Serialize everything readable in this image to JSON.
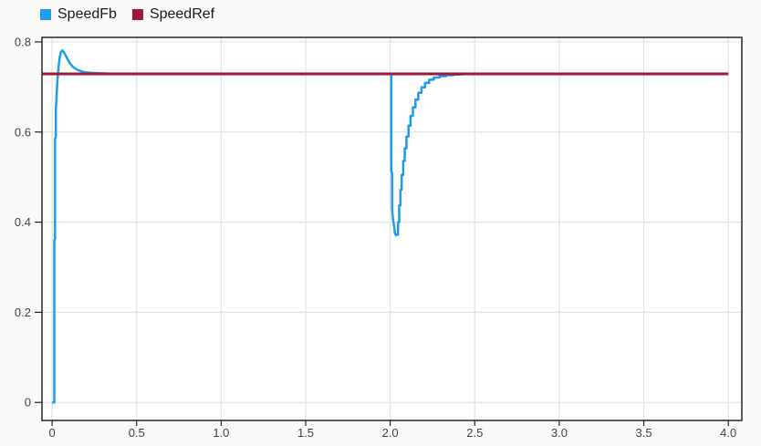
{
  "window": {
    "background": "#fafafa"
  },
  "legend": {
    "items": [
      {
        "id": "speedfb",
        "label": "SpeedFb",
        "color": "#1e9ceb"
      },
      {
        "id": "speedref",
        "label": "SpeedRef",
        "color": "#a21638"
      }
    ]
  },
  "chart_data": {
    "type": "line",
    "title": "",
    "xlabel": "",
    "ylabel": "",
    "xlim": [
      -0.06,
      4.08
    ],
    "ylim": [
      -0.04,
      0.81
    ],
    "grid": true,
    "legend_position": "top-left",
    "plot_background": "#ffffff",
    "grid_color": "#e2e2e2",
    "axis_color": "#262626",
    "tick_label_color": "#424242",
    "xticks": {
      "values": [
        0,
        0.5,
        1,
        1.5,
        2,
        2.5,
        3,
        3.5,
        4
      ],
      "labels": [
        "0",
        "0.5",
        "1.0",
        "1.5",
        "2.0",
        "2.5",
        "3.0",
        "3.5",
        "4.0"
      ]
    },
    "yticks": {
      "values": [
        0,
        0.2,
        0.4,
        0.6,
        0.8
      ],
      "labels": [
        "0",
        "0.2",
        "0.4",
        "0.6",
        "0.8"
      ]
    },
    "series": [
      {
        "name": "SpeedFb",
        "color": "#1e9ceb",
        "line_width": 2.5,
        "points": [
          [
            0.0,
            0.0
          ],
          [
            0.013,
            0.0
          ],
          [
            0.013,
            0.36
          ],
          [
            0.017,
            0.362
          ],
          [
            0.017,
            0.585
          ],
          [
            0.022,
            0.588
          ],
          [
            0.022,
            0.648
          ],
          [
            0.027,
            0.683
          ],
          [
            0.032,
            0.716
          ],
          [
            0.038,
            0.745
          ],
          [
            0.045,
            0.766
          ],
          [
            0.052,
            0.777
          ],
          [
            0.06,
            0.781
          ],
          [
            0.07,
            0.777
          ],
          [
            0.082,
            0.769
          ],
          [
            0.095,
            0.759
          ],
          [
            0.11,
            0.75
          ],
          [
            0.128,
            0.743
          ],
          [
            0.15,
            0.738
          ],
          [
            0.178,
            0.734
          ],
          [
            0.21,
            0.732
          ],
          [
            0.25,
            0.731
          ],
          [
            0.31,
            0.73
          ],
          [
            0.4,
            0.729
          ],
          [
            1.0,
            0.729
          ],
          [
            1.6,
            0.729
          ],
          [
            2.0,
            0.729
          ],
          [
            2.006,
            0.729
          ],
          [
            2.006,
            0.515
          ],
          [
            2.011,
            0.508
          ],
          [
            2.011,
            0.43
          ],
          [
            2.017,
            0.405
          ],
          [
            2.023,
            0.392
          ],
          [
            2.028,
            0.375
          ],
          [
            2.034,
            0.371
          ],
          [
            2.04,
            0.373
          ],
          [
            2.046,
            0.372
          ],
          [
            2.046,
            0.4
          ],
          [
            2.053,
            0.4
          ],
          [
            2.053,
            0.437
          ],
          [
            2.06,
            0.437
          ],
          [
            2.06,
            0.472
          ],
          [
            2.068,
            0.472
          ],
          [
            2.068,
            0.505
          ],
          [
            2.077,
            0.505
          ],
          [
            2.077,
            0.536
          ],
          [
            2.086,
            0.536
          ],
          [
            2.086,
            0.564
          ],
          [
            2.096,
            0.564
          ],
          [
            2.096,
            0.59
          ],
          [
            2.108,
            0.59
          ],
          [
            2.108,
            0.614
          ],
          [
            2.12,
            0.614
          ],
          [
            2.12,
            0.636
          ],
          [
            2.134,
            0.636
          ],
          [
            2.134,
            0.655
          ],
          [
            2.149,
            0.655
          ],
          [
            2.149,
            0.672
          ],
          [
            2.166,
            0.672
          ],
          [
            2.166,
            0.687
          ],
          [
            2.185,
            0.687
          ],
          [
            2.185,
            0.699
          ],
          [
            2.206,
            0.699
          ],
          [
            2.206,
            0.709
          ],
          [
            2.23,
            0.709
          ],
          [
            2.23,
            0.716
          ],
          [
            2.258,
            0.716
          ],
          [
            2.258,
            0.721
          ],
          [
            2.292,
            0.721
          ],
          [
            2.292,
            0.724
          ],
          [
            2.33,
            0.724
          ],
          [
            2.33,
            0.726
          ],
          [
            2.37,
            0.726
          ],
          [
            2.37,
            0.727
          ],
          [
            2.42,
            0.728
          ],
          [
            2.5,
            0.729
          ],
          [
            3.0,
            0.729
          ],
          [
            4.0,
            0.729
          ]
        ]
      },
      {
        "name": "SpeedRef",
        "color": "#a21638",
        "line_width": 3,
        "points": [
          [
            -0.06,
            0.729
          ],
          [
            4.0,
            0.729
          ]
        ]
      }
    ]
  }
}
